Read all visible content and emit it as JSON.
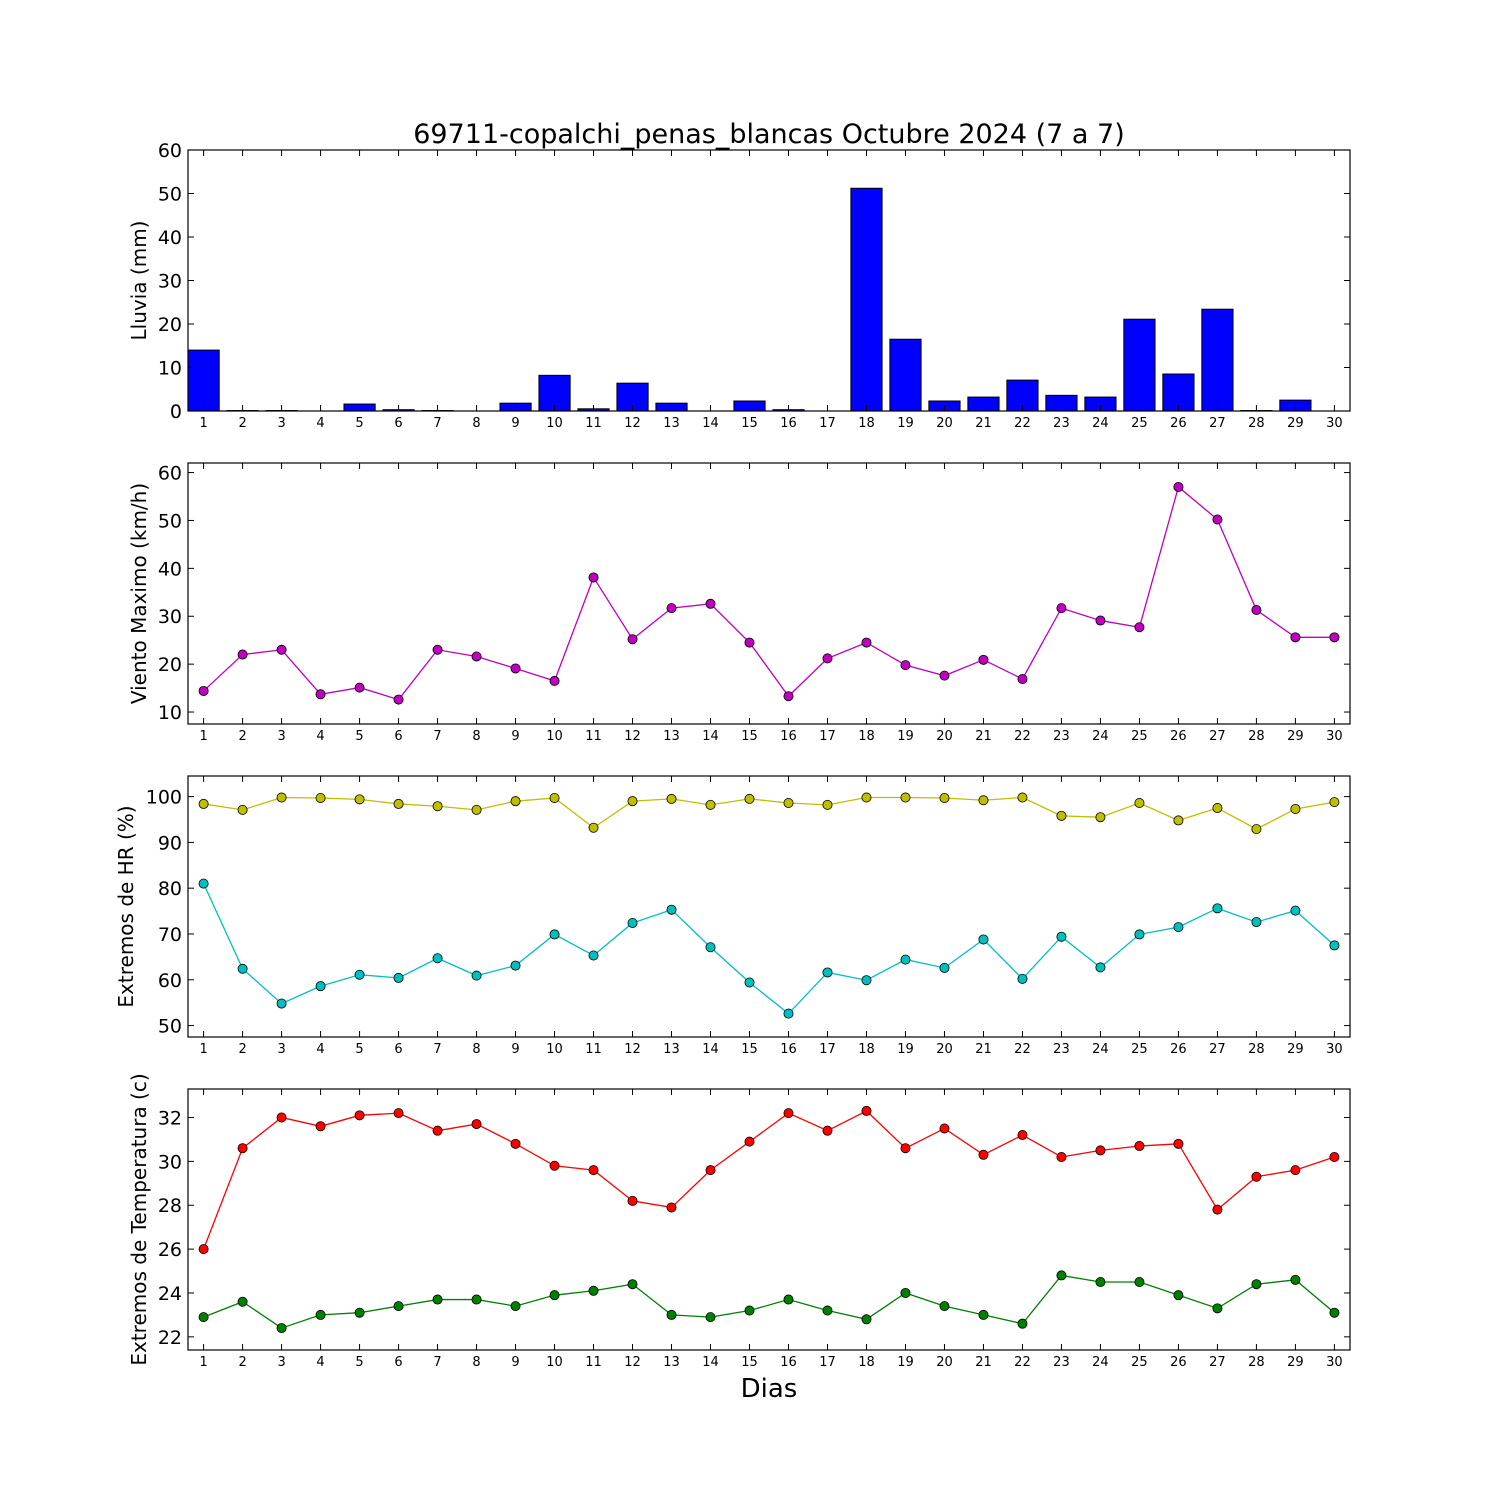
{
  "title": "69711-copalchi_penas_blancas Octubre 2024  (7 a 7)",
  "xlabel": "Dias",
  "chart_data": [
    {
      "type": "bar",
      "ylabel": "Lluvia (mm)",
      "ylim": [
        0,
        60
      ],
      "yticks": [
        0,
        10,
        20,
        30,
        40,
        50,
        60
      ],
      "x": [
        1,
        2,
        3,
        4,
        5,
        6,
        7,
        8,
        9,
        10,
        11,
        12,
        13,
        14,
        15,
        16,
        17,
        18,
        19,
        20,
        21,
        22,
        23,
        24,
        25,
        26,
        27,
        28,
        29,
        30
      ],
      "xticks": [
        "1",
        "2",
        "3",
        "4",
        "5",
        "6",
        "7",
        "8",
        "9",
        "10",
        "11",
        "12",
        "13",
        "14",
        "15",
        "16",
        "17",
        "18",
        "19",
        "20",
        "21",
        "22",
        "23",
        "24",
        "25",
        "26",
        "27",
        "28",
        "29",
        "30"
      ],
      "color": "#0000ff",
      "values": [
        14.0,
        0.1,
        0.1,
        0,
        1.6,
        0.3,
        0.1,
        0,
        1.8,
        8.2,
        0.5,
        6.4,
        1.8,
        0,
        2.3,
        0.3,
        0,
        51.2,
        16.5,
        2.3,
        3.2,
        7.1,
        3.6,
        3.2,
        21.1,
        8.5,
        23.4,
        0.1,
        2.5,
        0
      ]
    },
    {
      "type": "line",
      "ylabel": "Viento Maximo (km/h)",
      "ylim": [
        7.5,
        62
      ],
      "yticks": [
        10,
        20,
        30,
        40,
        50,
        60
      ],
      "x": [
        1,
        2,
        3,
        4,
        5,
        6,
        7,
        8,
        9,
        10,
        11,
        12,
        13,
        14,
        15,
        16,
        17,
        18,
        19,
        20,
        21,
        22,
        23,
        24,
        25,
        26,
        27,
        28,
        29,
        30
      ],
      "xticks": [
        "1",
        "2",
        "3",
        "4",
        "5",
        "6",
        "7",
        "8",
        "9",
        "10",
        "11",
        "12",
        "13",
        "14",
        "15",
        "16",
        "17",
        "18",
        "19",
        "20",
        "21",
        "22",
        "23",
        "24",
        "25",
        "26",
        "27",
        "28",
        "29",
        "30"
      ],
      "series": [
        {
          "color": "#bf00bf",
          "values": [
            14.4,
            22.0,
            23.0,
            13.7,
            15.1,
            12.6,
            23.0,
            21.6,
            19.1,
            16.5,
            38.1,
            25.2,
            31.7,
            32.6,
            24.5,
            13.3,
            21.2,
            24.5,
            19.8,
            17.6,
            20.9,
            16.9,
            31.7,
            29.1,
            27.7,
            57.0,
            50.2,
            31.3,
            25.6,
            25.6
          ]
        }
      ]
    },
    {
      "type": "line",
      "ylabel": "Extremos de HR (%)",
      "ylim": [
        47.5,
        104.5
      ],
      "yticks": [
        50,
        60,
        70,
        80,
        90,
        100
      ],
      "x": [
        1,
        2,
        3,
        4,
        5,
        6,
        7,
        8,
        9,
        10,
        11,
        12,
        13,
        14,
        15,
        16,
        17,
        18,
        19,
        20,
        21,
        22,
        23,
        24,
        25,
        26,
        27,
        28,
        29,
        30
      ],
      "xticks": [
        "1",
        "2",
        "3",
        "4",
        "5",
        "6",
        "7",
        "8",
        "9",
        "10",
        "11",
        "12",
        "13",
        "14",
        "15",
        "16",
        "17",
        "18",
        "19",
        "20",
        "21",
        "22",
        "23",
        "24",
        "25",
        "26",
        "27",
        "28",
        "29",
        "30"
      ],
      "series": [
        {
          "color": "#bfbf00",
          "values": [
            98.4,
            97.1,
            99.8,
            99.7,
            99.4,
            98.4,
            97.9,
            97.1,
            99.0,
            99.7,
            93.2,
            99.0,
            99.5,
            98.2,
            99.5,
            98.6,
            98.2,
            99.8,
            99.8,
            99.7,
            99.2,
            99.8,
            95.8,
            95.5,
            98.6,
            94.8,
            97.5,
            92.9,
            97.3,
            98.8
          ]
        },
        {
          "color": "#00bfbf",
          "values": [
            81.0,
            62.4,
            54.8,
            58.6,
            61.1,
            60.4,
            64.7,
            60.9,
            63.1,
            69.9,
            65.3,
            72.4,
            75.3,
            67.1,
            59.4,
            52.6,
            61.6,
            59.9,
            64.4,
            62.6,
            68.8,
            60.2,
            69.4,
            62.7,
            69.9,
            71.5,
            75.6,
            72.6,
            75.1,
            67.5
          ]
        }
      ]
    },
    {
      "type": "line",
      "ylabel": "Extremos de Temperatura (c)",
      "ylim": [
        21.4,
        33.3
      ],
      "yticks": [
        22,
        24,
        26,
        28,
        30,
        32
      ],
      "x": [
        1,
        2,
        3,
        4,
        5,
        6,
        7,
        8,
        9,
        10,
        11,
        12,
        13,
        14,
        15,
        16,
        17,
        18,
        19,
        20,
        21,
        22,
        23,
        24,
        25,
        26,
        27,
        28,
        29,
        30
      ],
      "xticks": [
        "1",
        "2",
        "3",
        "4",
        "5",
        "6",
        "7",
        "8",
        "9",
        "10",
        "11",
        "12",
        "13",
        "14",
        "15",
        "16",
        "17",
        "18",
        "19",
        "20",
        "21",
        "22",
        "23",
        "24",
        "25",
        "26",
        "27",
        "28",
        "29",
        "30"
      ],
      "series": [
        {
          "color": "#ff0000",
          "values": [
            26.0,
            30.6,
            32.0,
            31.6,
            32.1,
            32.2,
            31.4,
            31.7,
            30.8,
            29.8,
            29.6,
            28.2,
            27.9,
            29.6,
            30.9,
            32.2,
            31.4,
            32.3,
            30.6,
            31.5,
            30.3,
            31.2,
            30.2,
            30.5,
            30.7,
            30.8,
            27.8,
            29.3,
            29.6,
            30.2
          ]
        },
        {
          "color": "#008000",
          "values": [
            22.9,
            23.6,
            22.4,
            23.0,
            23.1,
            23.4,
            23.7,
            23.7,
            23.4,
            23.9,
            24.1,
            24.4,
            23.0,
            22.9,
            23.2,
            23.7,
            23.2,
            22.8,
            24.0,
            23.4,
            23.0,
            22.6,
            24.8,
            24.5,
            24.5,
            23.9,
            23.3,
            24.4,
            24.6,
            23.1
          ]
        }
      ]
    }
  ]
}
